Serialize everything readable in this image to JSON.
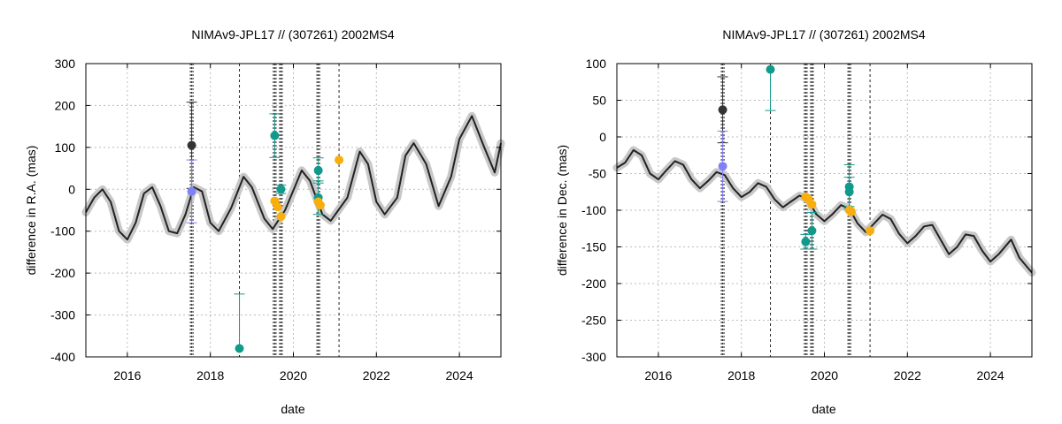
{
  "chart_data": [
    {
      "type": "scatter",
      "title": "NIMAv9-JPL17 // (307261) 2002MS4",
      "xlabel": "date",
      "ylabel": "difference in R.A. (mas)",
      "xlim": [
        2015.0,
        2025.0
      ],
      "ylim": [
        -400,
        300
      ],
      "xticks": [
        "2016",
        "2018",
        "2020",
        "2022",
        "2024"
      ],
      "xtick_values": [
        2016,
        2018,
        2020,
        2022,
        2024
      ],
      "yticks": [
        "-400",
        "-300",
        "-200",
        "-100",
        "0",
        "100",
        "200",
        "300"
      ],
      "ytick_values": [
        -400,
        -300,
        -200,
        -100,
        0,
        100,
        200,
        300
      ],
      "grid": true,
      "colors": {
        "model": "#222222",
        "band": "#c8c8c8",
        "grid": "#bbbbbb",
        "black": "#333333",
        "blue": "#8080f8",
        "teal": "#109a8c",
        "orange": "#f8ae0c"
      },
      "model_curve": [
        [
          2015.0,
          -55
        ],
        [
          2015.2,
          -20
        ],
        [
          2015.4,
          0
        ],
        [
          2015.6,
          -30
        ],
        [
          2015.8,
          -100
        ],
        [
          2016.0,
          -120
        ],
        [
          2016.2,
          -80
        ],
        [
          2016.4,
          -10
        ],
        [
          2016.6,
          5
        ],
        [
          2016.8,
          -40
        ],
        [
          2017.0,
          -100
        ],
        [
          2017.2,
          -105
        ],
        [
          2017.4,
          -60
        ],
        [
          2017.6,
          5
        ],
        [
          2017.8,
          -5
        ],
        [
          2018.0,
          -80
        ],
        [
          2018.2,
          -100
        ],
        [
          2018.5,
          -45
        ],
        [
          2018.8,
          30
        ],
        [
          2019.0,
          5
        ],
        [
          2019.3,
          -70
        ],
        [
          2019.5,
          -95
        ],
        [
          2019.8,
          -50
        ],
        [
          2020.2,
          45
        ],
        [
          2020.4,
          20
        ],
        [
          2020.7,
          -60
        ],
        [
          2020.9,
          -75
        ],
        [
          2021.3,
          -20
        ],
        [
          2021.6,
          90
        ],
        [
          2021.8,
          60
        ],
        [
          2022.0,
          -30
        ],
        [
          2022.2,
          -60
        ],
        [
          2022.5,
          -20
        ],
        [
          2022.7,
          80
        ],
        [
          2022.9,
          110
        ],
        [
          2023.2,
          60
        ],
        [
          2023.5,
          -40
        ],
        [
          2023.8,
          30
        ],
        [
          2024.0,
          120
        ],
        [
          2024.3,
          175
        ],
        [
          2024.6,
          100
        ],
        [
          2024.85,
          40
        ],
        [
          2025.0,
          110
        ]
      ],
      "event_lines": [
        {
          "x": 2017.55,
          "style": "dense"
        },
        {
          "x": 2018.7,
          "style": "thin"
        },
        {
          "x": 2019.55,
          "style": "dense"
        },
        {
          "x": 2019.7,
          "style": "dense"
        },
        {
          "x": 2020.6,
          "style": "dense"
        },
        {
          "x": 2021.1,
          "style": "thin"
        }
      ],
      "points": [
        {
          "x": 2017.55,
          "y": 105,
          "color": "black",
          "err": 103
        },
        {
          "x": 2017.55,
          "y": -5,
          "color": "blue",
          "err": 75
        },
        {
          "x": 2018.7,
          "y": -380,
          "color": "teal",
          "err": 130,
          "err_up_only": true
        },
        {
          "x": 2019.55,
          "y": 128,
          "color": "teal",
          "err": 52
        },
        {
          "x": 2019.7,
          "y": 0,
          "color": "teal",
          "err": 10
        },
        {
          "x": 2020.6,
          "y": 45,
          "color": "teal",
          "err": 30
        },
        {
          "x": 2020.6,
          "y": -20,
          "color": "teal",
          "err": 40
        },
        {
          "x": 2019.55,
          "y": -28,
          "color": "orange",
          "err": 0
        },
        {
          "x": 2019.62,
          "y": -42,
          "color": "orange",
          "err": 0
        },
        {
          "x": 2019.7,
          "y": -65,
          "color": "orange",
          "err": 0
        },
        {
          "x": 2020.6,
          "y": -30,
          "color": "orange",
          "err": 0
        },
        {
          "x": 2020.65,
          "y": -38,
          "color": "orange",
          "err": 0
        },
        {
          "x": 2021.1,
          "y": 70,
          "color": "orange",
          "err": 0
        }
      ]
    },
    {
      "type": "scatter",
      "title": "NIMAv9-JPL17 // (307261) 2002MS4",
      "xlabel": "date",
      "ylabel": "difference in Dec. (mas)",
      "xlim": [
        2015.0,
        2025.0
      ],
      "ylim": [
        -300,
        100
      ],
      "xticks": [
        "2016",
        "2018",
        "2020",
        "2022",
        "2024"
      ],
      "xtick_values": [
        2016,
        2018,
        2020,
        2022,
        2024
      ],
      "yticks": [
        "-300",
        "-250",
        "-200",
        "-150",
        "-100",
        "-50",
        "0",
        "50",
        "100"
      ],
      "ytick_values": [
        -300,
        -250,
        -200,
        -150,
        -100,
        -50,
        0,
        50,
        100
      ],
      "grid": true,
      "colors": {
        "model": "#222222",
        "band": "#c8c8c8",
        "grid": "#bbbbbb",
        "black": "#333333",
        "blue": "#8080f8",
        "teal": "#109a8c",
        "orange": "#f8ae0c"
      },
      "model_curve": [
        [
          2015.0,
          -42
        ],
        [
          2015.2,
          -35
        ],
        [
          2015.4,
          -18
        ],
        [
          2015.6,
          -25
        ],
        [
          2015.8,
          -50
        ],
        [
          2016.0,
          -58
        ],
        [
          2016.2,
          -45
        ],
        [
          2016.4,
          -33
        ],
        [
          2016.6,
          -38
        ],
        [
          2016.8,
          -58
        ],
        [
          2017.0,
          -70
        ],
        [
          2017.2,
          -60
        ],
        [
          2017.4,
          -48
        ],
        [
          2017.6,
          -52
        ],
        [
          2017.8,
          -70
        ],
        [
          2018.0,
          -82
        ],
        [
          2018.2,
          -75
        ],
        [
          2018.4,
          -63
        ],
        [
          2018.6,
          -68
        ],
        [
          2018.8,
          -85
        ],
        [
          2019.0,
          -96
        ],
        [
          2019.2,
          -88
        ],
        [
          2019.4,
          -80
        ],
        [
          2019.6,
          -85
        ],
        [
          2019.8,
          -105
        ],
        [
          2020.0,
          -115
        ],
        [
          2020.2,
          -105
        ],
        [
          2020.4,
          -93
        ],
        [
          2020.6,
          -98
        ],
        [
          2020.8,
          -118
        ],
        [
          2021.0,
          -130
        ],
        [
          2021.2,
          -118
        ],
        [
          2021.4,
          -106
        ],
        [
          2021.6,
          -112
        ],
        [
          2021.8,
          -132
        ],
        [
          2022.0,
          -145
        ],
        [
          2022.2,
          -135
        ],
        [
          2022.4,
          -122
        ],
        [
          2022.6,
          -120
        ],
        [
          2022.8,
          -140
        ],
        [
          2023.0,
          -160
        ],
        [
          2023.2,
          -150
        ],
        [
          2023.4,
          -133
        ],
        [
          2023.6,
          -135
        ],
        [
          2023.8,
          -155
        ],
        [
          2024.0,
          -170
        ],
        [
          2024.2,
          -160
        ],
        [
          2024.5,
          -140
        ],
        [
          2024.7,
          -165
        ],
        [
          2025.0,
          -185
        ]
      ],
      "event_lines": [
        {
          "x": 2017.55,
          "style": "dense"
        },
        {
          "x": 2018.7,
          "style": "thin"
        },
        {
          "x": 2019.55,
          "style": "dense"
        },
        {
          "x": 2019.7,
          "style": "dense"
        },
        {
          "x": 2020.6,
          "style": "dense"
        },
        {
          "x": 2021.1,
          "style": "thin"
        }
      ],
      "points": [
        {
          "x": 2017.55,
          "y": 37,
          "color": "black",
          "err": 45
        },
        {
          "x": 2017.55,
          "y": -40,
          "color": "blue",
          "err": 48
        },
        {
          "x": 2018.7,
          "y": 92,
          "color": "teal",
          "err": 56,
          "err_down_only": true
        },
        {
          "x": 2019.55,
          "y": -143,
          "color": "teal",
          "err": 10
        },
        {
          "x": 2019.7,
          "y": -128,
          "color": "teal",
          "err": 25
        },
        {
          "x": 2020.6,
          "y": -68,
          "color": "teal",
          "err": 30
        },
        {
          "x": 2020.6,
          "y": -75,
          "color": "teal",
          "err": 20
        },
        {
          "x": 2019.55,
          "y": -82,
          "color": "orange",
          "err": 0
        },
        {
          "x": 2019.62,
          "y": -85,
          "color": "orange",
          "err": 0
        },
        {
          "x": 2019.7,
          "y": -92,
          "color": "orange",
          "err": 0
        },
        {
          "x": 2020.6,
          "y": -100,
          "color": "orange",
          "err": 0
        },
        {
          "x": 2020.65,
          "y": -102,
          "color": "orange",
          "err": 0
        },
        {
          "x": 2021.1,
          "y": -128,
          "color": "orange",
          "err": 0
        }
      ]
    }
  ]
}
